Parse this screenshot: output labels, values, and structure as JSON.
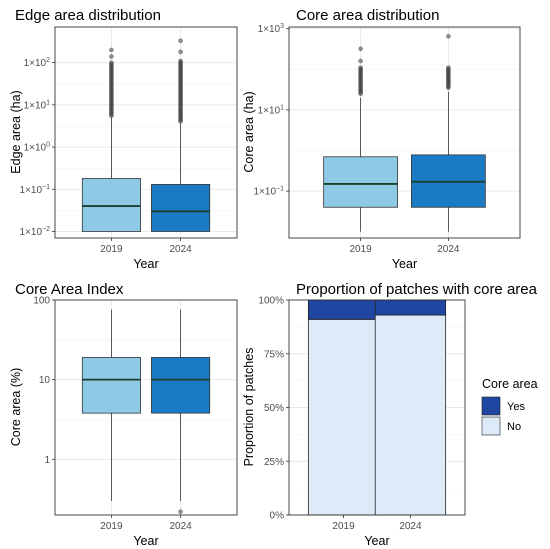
{
  "chart_data": [
    {
      "type": "box",
      "title": "Edge area distribution",
      "xlabel": "Year",
      "ylabel": "Edge area (ha)",
      "yscale": "log",
      "ylim": [
        0.007,
        700
      ],
      "yticks": [
        {
          "value": 0.01,
          "mantissa": "1×10",
          "exp": "−2"
        },
        {
          "value": 0.1,
          "mantissa": "1×10",
          "exp": "−1"
        },
        {
          "value": 1,
          "mantissa": "1×10",
          "exp": "0"
        },
        {
          "value": 10,
          "mantissa": "1×10",
          "exp": "1"
        },
        {
          "value": 100,
          "mantissa": "1×10",
          "exp": "2"
        }
      ],
      "categories": [
        "2019",
        "2024"
      ],
      "colors": [
        "#8ecae6",
        "#1a7ac4"
      ],
      "boxes": [
        {
          "q1": 0.01,
          "median": 0.04,
          "q3": 0.18,
          "whisker_low": 0.01,
          "whisker_high": 5,
          "outlier_range": [
            5.5,
            100
          ],
          "outliers_sparse": [
            140,
            200
          ]
        },
        {
          "q1": 0.01,
          "median": 0.03,
          "q3": 0.13,
          "whisker_low": 0.01,
          "whisker_high": 3.5,
          "outlier_range": [
            4,
            110
          ],
          "outliers_sparse": [
            180,
            330
          ]
        }
      ]
    },
    {
      "type": "box",
      "title": "Core area distribution",
      "xlabel": "Year",
      "ylabel": "Core area (ha)",
      "yscale": "log",
      "ylim": [
        0.007,
        1100
      ],
      "yticks": [
        {
          "value": 0.1,
          "mantissa": "1×10",
          "exp": "−1"
        },
        {
          "value": 10,
          "mantissa": "1×10",
          "exp": "1"
        },
        {
          "value": 1000,
          "mantissa": "1×10",
          "exp": "3"
        }
      ],
      "categories": [
        "2019",
        "2024"
      ],
      "colors": [
        "#8ecae6",
        "#1a7ac4"
      ],
      "boxes": [
        {
          "q1": 0.04,
          "median": 0.15,
          "q3": 0.7,
          "whisker_low": 0.01,
          "whisker_high": 20,
          "outlier_range": [
            25,
            110
          ],
          "outliers_sparse": [
            160,
            320
          ]
        },
        {
          "q1": 0.04,
          "median": 0.17,
          "q3": 0.78,
          "whisker_low": 0.01,
          "whisker_high": 28,
          "outlier_range": [
            35,
            110
          ],
          "outliers_sparse": [
            650
          ]
        }
      ]
    },
    {
      "type": "box",
      "title": "Core Area Index",
      "xlabel": "Year",
      "ylabel": "Core area (%)",
      "yscale": "log",
      "ylim": [
        0.2,
        100
      ],
      "yticks": [
        {
          "value": 1,
          "label": "1"
        },
        {
          "value": 10,
          "label": "10"
        },
        {
          "value": 100,
          "label": "100"
        }
      ],
      "categories": [
        "2019",
        "2024"
      ],
      "colors": [
        "#8ecae6",
        "#1a7ac4"
      ],
      "boxes": [
        {
          "q1": 3.8,
          "median": 10,
          "q3": 19,
          "whisker_low": 0.3,
          "whisker_high": 76,
          "outlier_range": null,
          "outliers_sparse": []
        },
        {
          "q1": 3.8,
          "median": 10,
          "q3": 19,
          "whisker_low": 0.3,
          "whisker_high": 76,
          "outlier_range": null,
          "outliers_sparse": [
            0.22
          ]
        }
      ]
    },
    {
      "type": "stacked_bar",
      "title": "Proportion of patches with core area",
      "xlabel": "Year",
      "ylabel": "Proportion of patches",
      "ylim": [
        0,
        1
      ],
      "yticks": [
        {
          "value": 0,
          "label": "0%"
        },
        {
          "value": 0.25,
          "label": "25%"
        },
        {
          "value": 0.5,
          "label": "50%"
        },
        {
          "value": 0.75,
          "label": "75%"
        },
        {
          "value": 1,
          "label": "100%"
        }
      ],
      "categories": [
        "2019",
        "2024"
      ],
      "series": [
        {
          "name": "No",
          "color": "#ddeaf8",
          "values": [
            0.91,
            0.93
          ]
        },
        {
          "name": "Yes",
          "color": "#1f46a0",
          "values": [
            0.09,
            0.07
          ]
        }
      ],
      "legend": {
        "title": "Core area",
        "position": "right",
        "items": [
          "Yes",
          "No"
        ]
      }
    }
  ]
}
